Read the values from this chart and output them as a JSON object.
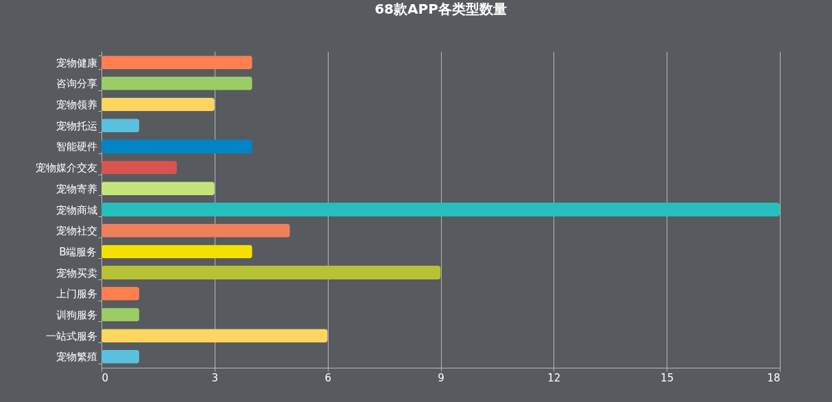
{
  "chart_data": {
    "type": "bar",
    "orientation": "horizontal",
    "title": "68款APP各类型数量",
    "categories": [
      "宠物健康",
      "咨询分享",
      "宠物领养",
      "宠物托运",
      "智能硬件",
      "宠物媒介交友",
      "宠物寄养",
      "宠物商城",
      "宠物社交",
      "B端服务",
      "宠物买卖",
      "上门服务",
      "训狗服务",
      "一站式服务",
      "宠物繁殖"
    ],
    "values": [
      4,
      4,
      3,
      1,
      4,
      2,
      3,
      18,
      5,
      4,
      9,
      1,
      1,
      6,
      1
    ],
    "colors": [
      "#ff7f50",
      "#9ccc65",
      "#fcd65e",
      "#5bc0de",
      "#0084c6",
      "#d9534f",
      "#c5e57a",
      "#25c0bd",
      "#f07f5c",
      "#f4e001",
      "#b5c334",
      "#ff7f50",
      "#9ccc65",
      "#fcd65e",
      "#5bc0de"
    ],
    "xlim": [
      0,
      18
    ],
    "xticks": [
      0,
      3,
      6,
      9,
      12,
      15,
      18
    ],
    "grid": "x"
  }
}
